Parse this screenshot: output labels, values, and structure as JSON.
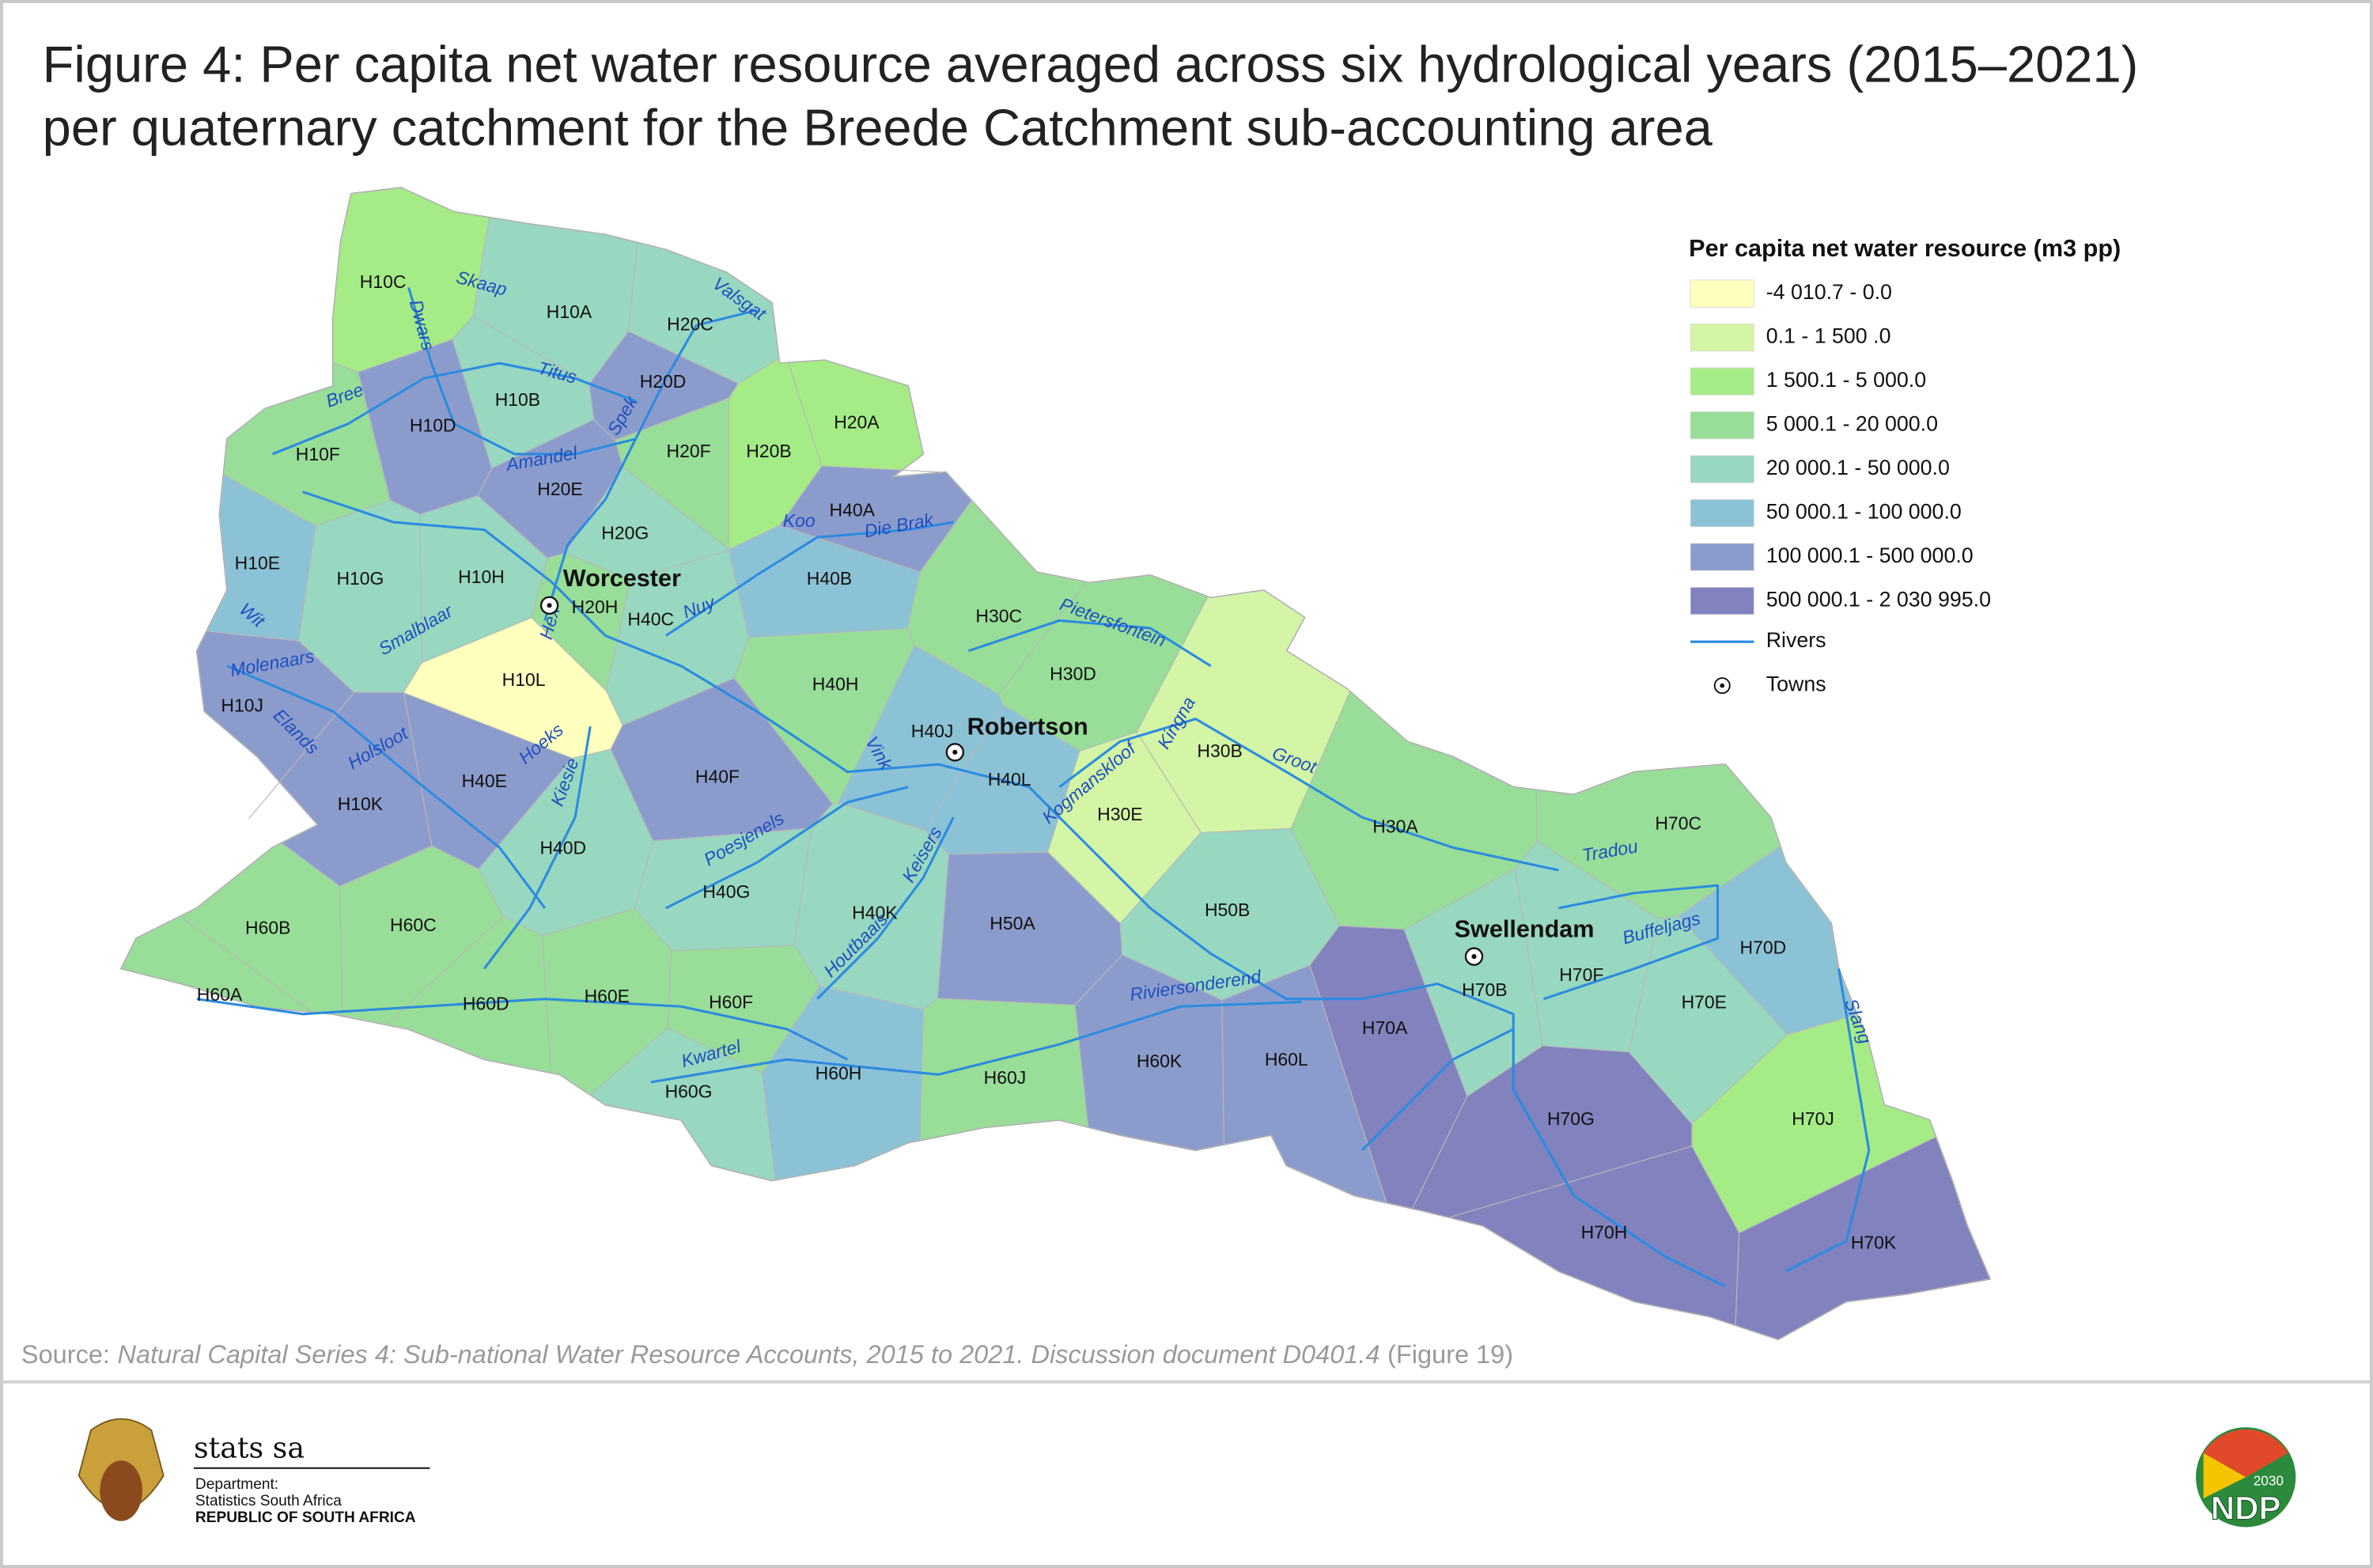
{
  "header": {
    "title_lines": [
      "Figure 4: Per capita net water resource averaged across six hydrological years (2015–2021)",
      "per quaternary catchment for the Breede Catchment sub-accounting area"
    ]
  },
  "legend": {
    "title": "Per capita net water resource (m3 pp)",
    "classes": [
      {
        "label": "-4 010.7 - 0.0",
        "color": "#ffffbe"
      },
      {
        "label": "0.1 - 1 500 .0",
        "color": "#d3f5a5"
      },
      {
        "label": "1 500.1 - 5 000.0",
        "color": "#a5eb86"
      },
      {
        "label": "5 000.1 - 20 000.0",
        "color": "#98dd98"
      },
      {
        "label": "20 000.1 - 50 000.0",
        "color": "#98d7c0"
      },
      {
        "label": "50 000.1 - 100 000.0",
        "color": "#8cc2d6"
      },
      {
        "label": "100 000.1 - 500 000.0",
        "color": "#8b9ccc"
      },
      {
        "label": "500 000.1 - 2 030 995.0",
        "color": "#8182be"
      }
    ],
    "rivers": "Rivers",
    "towns": "Towns",
    "river_color": "#2b8be0"
  },
  "catchments": [
    {
      "code": "H10C",
      "color": "#a5eb86"
    },
    {
      "code": "H10A",
      "color": "#98d7c0"
    },
    {
      "code": "H20C",
      "color": "#98d7c0"
    },
    {
      "code": "H10B",
      "color": "#98d7c0"
    },
    {
      "code": "H20D",
      "color": "#8b9ccc"
    },
    {
      "code": "H10D",
      "color": "#8b9ccc"
    },
    {
      "code": "H20A",
      "color": "#a5eb86"
    },
    {
      "code": "H20B",
      "color": "#a5eb86"
    },
    {
      "code": "H20F",
      "color": "#98dd98"
    },
    {
      "code": "H10F",
      "color": "#98dd98"
    },
    {
      "code": "H20E",
      "color": "#8b9ccc"
    },
    {
      "code": "H20G",
      "color": "#98d7c0"
    },
    {
      "code": "H40A",
      "color": "#8b9ccc"
    },
    {
      "code": "H10E",
      "color": "#8cc2d6"
    },
    {
      "code": "H10G",
      "color": "#98d7c0"
    },
    {
      "code": "H10H",
      "color": "#98d7c0"
    },
    {
      "code": "H20H",
      "color": "#98dd98"
    },
    {
      "code": "H40C",
      "color": "#98d7c0"
    },
    {
      "code": "H40B",
      "color": "#8cc2d6"
    },
    {
      "code": "H10L",
      "color": "#ffffbe"
    },
    {
      "code": "H10J",
      "color": "#8b9ccc"
    },
    {
      "code": "H10K",
      "color": "#8b9ccc"
    },
    {
      "code": "H40E",
      "color": "#8b9ccc"
    },
    {
      "code": "H40F",
      "color": "#8b9ccc"
    },
    {
      "code": "H40D",
      "color": "#98d7c0"
    },
    {
      "code": "H40H",
      "color": "#98dd98"
    },
    {
      "code": "H30C",
      "color": "#98dd98"
    },
    {
      "code": "H30D",
      "color": "#98dd98"
    },
    {
      "code": "H40J",
      "color": "#8cc2d6"
    },
    {
      "code": "H40L",
      "color": "#8cc2d6"
    },
    {
      "code": "H30B",
      "color": "#d3f5a5"
    },
    {
      "code": "H30E",
      "color": "#d3f5a5"
    },
    {
      "code": "H30A",
      "color": "#98dd98"
    },
    {
      "code": "H70C",
      "color": "#98dd98"
    },
    {
      "code": "H40G",
      "color": "#98d7c0"
    },
    {
      "code": "H40K",
      "color": "#98d7c0"
    },
    {
      "code": "H50A",
      "color": "#8b9ccc"
    },
    {
      "code": "H50B",
      "color": "#98d7c0"
    },
    {
      "code": "H70D",
      "color": "#8cc2d6"
    },
    {
      "code": "H60B",
      "color": "#98dd98"
    },
    {
      "code": "H60C",
      "color": "#98dd98"
    },
    {
      "code": "H60A",
      "color": "#98dd98"
    },
    {
      "code": "H60D",
      "color": "#98dd98"
    },
    {
      "code": "H60E",
      "color": "#98dd98"
    },
    {
      "code": "H60F",
      "color": "#98dd98"
    },
    {
      "code": "H70B",
      "color": "#98d7c0"
    },
    {
      "code": "H70F",
      "color": "#98d7c0"
    },
    {
      "code": "H70E",
      "color": "#98d7c0"
    },
    {
      "code": "H70A",
      "color": "#8182be"
    },
    {
      "code": "H60K",
      "color": "#8b9ccc"
    },
    {
      "code": "H60L",
      "color": "#8b9ccc"
    },
    {
      "code": "H60G",
      "color": "#98d7c0"
    },
    {
      "code": "H60H",
      "color": "#8cc2d6"
    },
    {
      "code": "H60J",
      "color": "#98dd98"
    },
    {
      "code": "H70G",
      "color": "#8182be"
    },
    {
      "code": "H70J",
      "color": "#a5eb86"
    },
    {
      "code": "H70H",
      "color": "#8182be"
    },
    {
      "code": "H70K",
      "color": "#8182be"
    }
  ],
  "rivers": [
    "Skaap",
    "Valsgat",
    "Dwars",
    "Titus",
    "Spek",
    "Bree",
    "Amandel",
    "Koo",
    "Die Brak",
    "Hex",
    "Nuy",
    "Wit",
    "Smalblaar",
    "Molenaars",
    "Elands",
    "Holsloot",
    "Hoeks",
    "Kiesie",
    "Vink",
    "Kogmanskloof",
    "Kingna",
    "Groot",
    "Pietersfontein",
    "Poesjenels",
    "Keisers",
    "Houtbaais",
    "Tradou",
    "Buffeljags",
    "Riviersonderend",
    "Kwartel",
    "Slang"
  ],
  "towns": [
    "Worcester",
    "Robertson",
    "Swellendam"
  ],
  "source": {
    "prefix": "Source:",
    "document": "Natural Capital Series 4: Sub-national Water Resource Accounts, 2015 to 2021. Discussion document D0401.4",
    "suffix": "(Figure 19)"
  },
  "footer": {
    "statssa": "stats sa",
    "department": "Department:",
    "agency": "Statistics South Africa",
    "country": "REPUBLIC OF SOUTH AFRICA",
    "ndp_year": "2030",
    "ndp": "NDP"
  }
}
